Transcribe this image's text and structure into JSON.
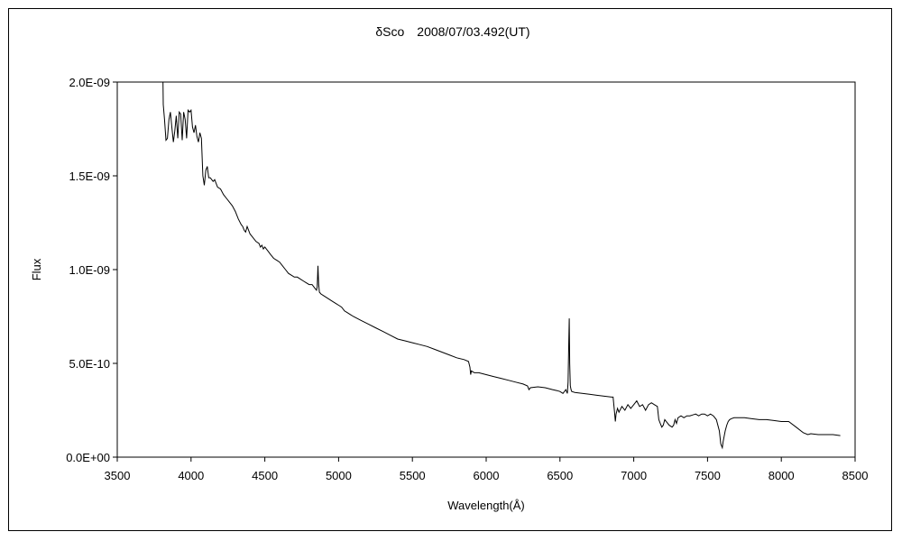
{
  "chart_data": {
    "type": "line",
    "title": "δSco　2008/07/03.492(UT)",
    "xlabel": "Wavelength(Å)",
    "ylabel": "Flux",
    "xlim": [
      3500,
      8500
    ],
    "ylim": [
      0,
      2e-09
    ],
    "x_ticks": [
      3500,
      4000,
      4500,
      5000,
      5500,
      6000,
      6500,
      7000,
      7500,
      8000,
      8500
    ],
    "x_tick_labels": [
      "3500",
      "4000",
      "4500",
      "5000",
      "5500",
      "6000",
      "6500",
      "7000",
      "7500",
      "8000",
      "8500"
    ],
    "y_ticks": [
      0,
      5e-10,
      1e-09,
      1.5e-09,
      2e-09
    ],
    "y_tick_labels": [
      "0.0E+00",
      "5.0E-10",
      "1.0E-09",
      "1.5E-09",
      "2.0E-09"
    ],
    "grid": false,
    "legend": "none",
    "line_color": "#000000",
    "series": [
      {
        "x": [
          3810,
          3812,
          3820,
          3830,
          3840,
          3850,
          3860,
          3870,
          3880,
          3890,
          3900,
          3910,
          3920,
          3930,
          3940,
          3950,
          3960,
          3970,
          3980,
          3990,
          4000,
          4010,
          4020,
          4030,
          4040,
          4050,
          4060,
          4070,
          4080,
          4090,
          4100,
          4110,
          4120,
          4130,
          4140,
          4150,
          4160,
          4180,
          4200,
          4220,
          4240,
          4260,
          4280,
          4300,
          4320,
          4340,
          4350,
          4360,
          4370,
          4380,
          4400,
          4420,
          4440,
          4460,
          4470,
          4480,
          4490,
          4500,
          4520,
          4540,
          4560,
          4580,
          4600,
          4620,
          4640,
          4660,
          4680,
          4700,
          4720,
          4740,
          4760,
          4780,
          4800,
          4820,
          4840,
          4850,
          4855,
          4860,
          4865,
          4870,
          4880,
          4900,
          4920,
          4940,
          4960,
          4980,
          5000,
          5020,
          5040,
          5060,
          5080,
          5100,
          5150,
          5200,
          5250,
          5300,
          5350,
          5400,
          5450,
          5500,
          5550,
          5600,
          5650,
          5700,
          5750,
          5800,
          5850,
          5880,
          5890,
          5895,
          5900,
          5920,
          5950,
          6000,
          6050,
          6100,
          6150,
          6200,
          6250,
          6280,
          6290,
          6300,
          6350,
          6400,
          6450,
          6480,
          6500,
          6520,
          6540,
          6550,
          6555,
          6560,
          6563,
          6566,
          6570,
          6575,
          6580,
          6600,
          6650,
          6700,
          6750,
          6800,
          6850,
          6860,
          6870,
          6875,
          6880,
          6890,
          6900,
          6920,
          6940,
          6960,
          6980,
          7000,
          7020,
          7040,
          7060,
          7080,
          7100,
          7120,
          7140,
          7160,
          7170,
          7180,
          7190,
          7200,
          7210,
          7220,
          7240,
          7260,
          7270,
          7280,
          7290,
          7300,
          7320,
          7340,
          7360,
          7380,
          7400,
          7420,
          7440,
          7460,
          7480,
          7500,
          7520,
          7540,
          7560,
          7580,
          7590,
          7600,
          7605,
          7610,
          7620,
          7630,
          7640,
          7650,
          7660,
          7680,
          7700,
          7750,
          7800,
          7850,
          7900,
          7950,
          8000,
          8050,
          8100,
          8150,
          8180,
          8200,
          8250,
          8300,
          8350,
          8400
        ],
        "y": [
          2e-09,
          1.88e-09,
          1.8e-09,
          1.69e-09,
          1.7e-09,
          1.8e-09,
          1.84e-09,
          1.76e-09,
          1.68e-09,
          1.74e-09,
          1.82e-09,
          1.7e-09,
          1.84e-09,
          1.83e-09,
          1.69e-09,
          1.84e-09,
          1.8e-09,
          1.7e-09,
          1.85e-09,
          1.84e-09,
          1.85e-09,
          1.76e-09,
          1.73e-09,
          1.77e-09,
          1.71e-09,
          1.68e-09,
          1.73e-09,
          1.7e-09,
          1.5e-09,
          1.45e-09,
          1.53e-09,
          1.55e-09,
          1.49e-09,
          1.49e-09,
          1.48e-09,
          1.47e-09,
          1.48e-09,
          1.44e-09,
          1.43e-09,
          1.4e-09,
          1.38e-09,
          1.36e-09,
          1.34e-09,
          1.31e-09,
          1.27e-09,
          1.24e-09,
          1.23e-09,
          1.21e-09,
          1.2e-09,
          1.23e-09,
          1.19e-09,
          1.17e-09,
          1.15e-09,
          1.14e-09,
          1.12e-09,
          1.13e-09,
          1.11e-09,
          1.12e-09,
          1.1e-09,
          1.08e-09,
          1.06e-09,
          1.05e-09,
          1.04e-09,
          1.02e-09,
          1e-09,
          9.8e-10,
          9.7e-10,
          9.6e-10,
          9.6e-10,
          9.5e-10,
          9.4e-10,
          9.3e-10,
          9.2e-10,
          9.2e-10,
          9e-10,
          8.9e-10,
          9.1e-10,
          1.02e-09,
          9.2e-10,
          8.8e-10,
          8.7e-10,
          8.6e-10,
          8.5e-10,
          8.4e-10,
          8.3e-10,
          8.2e-10,
          8.1e-10,
          8e-10,
          7.8e-10,
          7.7e-10,
          7.6e-10,
          7.5e-10,
          7.3e-10,
          7.1e-10,
          6.9e-10,
          6.7e-10,
          6.5e-10,
          6.3e-10,
          6.2e-10,
          6.1e-10,
          6e-10,
          5.9e-10,
          5.75e-10,
          5.6e-10,
          5.45e-10,
          5.3e-10,
          5.2e-10,
          5.1e-10,
          4.8e-10,
          4.4e-10,
          4.6e-10,
          4.5e-10,
          4.5e-10,
          4.4e-10,
          4.3e-10,
          4.2e-10,
          4.1e-10,
          4e-10,
          3.9e-10,
          3.8e-10,
          3.6e-10,
          3.7e-10,
          3.75e-10,
          3.7e-10,
          3.6e-10,
          3.55e-10,
          3.5e-10,
          3.4e-10,
          3.6e-10,
          3.4e-10,
          4e-10,
          6.2e-10,
          7.4e-10,
          5e-10,
          3.8e-10,
          3.6e-10,
          3.5e-10,
          3.45e-10,
          3.4e-10,
          3.35e-10,
          3.3e-10,
          3.25e-10,
          3.2e-10,
          3.2e-10,
          2.4e-10,
          1.9e-10,
          2.3e-10,
          2.6e-10,
          2.4e-10,
          2.7e-10,
          2.5e-10,
          2.8e-10,
          2.6e-10,
          2.8e-10,
          3e-10,
          2.7e-10,
          2.8e-10,
          2.5e-10,
          2.8e-10,
          2.9e-10,
          2.8e-10,
          2.7e-10,
          2e-10,
          1.8e-10,
          1.6e-10,
          1.7e-10,
          2e-10,
          1.9e-10,
          1.7e-10,
          1.6e-10,
          1.7e-10,
          2e-10,
          1.8e-10,
          2.1e-10,
          2.2e-10,
          2.1e-10,
          2.2e-10,
          2.2e-10,
          2.25e-10,
          2.3e-10,
          2.2e-10,
          2.3e-10,
          2.3e-10,
          2.2e-10,
          2.3e-10,
          2.2e-10,
          2e-10,
          1.4e-10,
          7e-11,
          5e-11,
          8e-11,
          1e-10,
          1.4e-10,
          1.7e-10,
          1.9e-10,
          2e-10,
          2.05e-10,
          2.1e-10,
          2.1e-10,
          2.1e-10,
          2.05e-10,
          2e-10,
          2e-10,
          1.95e-10,
          1.9e-10,
          1.9e-10,
          1.6e-10,
          1.3e-10,
          1.2e-10,
          1.25e-10,
          1.2e-10,
          1.2e-10,
          1.2e-10,
          1.15e-10
        ]
      }
    ]
  }
}
